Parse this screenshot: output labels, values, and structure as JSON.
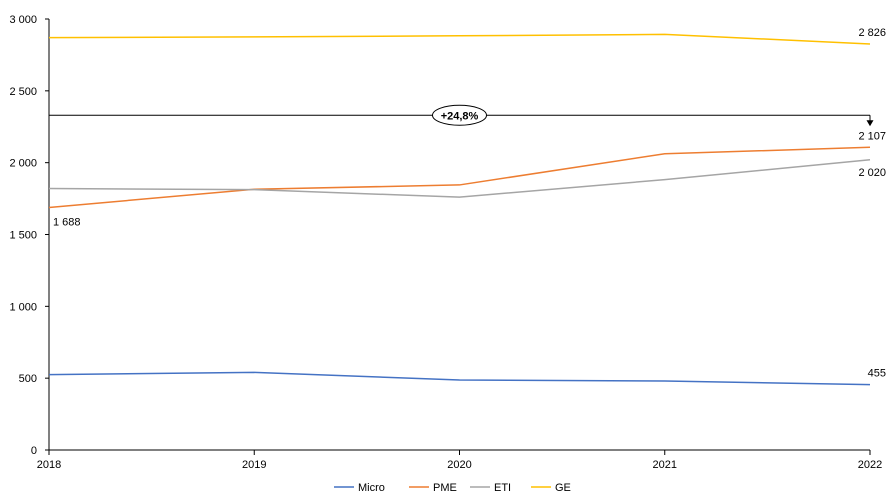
{
  "chart_data": {
    "type": "line",
    "x": [
      "2018",
      "2019",
      "2020",
      "2021",
      "2022"
    ],
    "ylim": [
      0,
      3000
    ],
    "yticks": [
      0,
      500,
      1000,
      1500,
      2000,
      2500,
      3000
    ],
    "ytick_labels": [
      "0",
      "500",
      "1 000",
      "1 500",
      "2 000",
      "2 500",
      "3 000"
    ],
    "series": [
      {
        "name": "Micro",
        "color": "#4472C4",
        "values": [
          525,
          540,
          487,
          480,
          455
        ]
      },
      {
        "name": "PME",
        "color": "#ED7D31",
        "values": [
          1688,
          1815,
          1845,
          2062,
          2107
        ]
      },
      {
        "name": "ETI",
        "color": "#A5A5A5",
        "values": [
          1820,
          1812,
          1760,
          1882,
          2020
        ]
      },
      {
        "name": "GE",
        "color": "#FFC000",
        "values": [
          2870,
          2876,
          2883,
          2893,
          2826
        ]
      }
    ],
    "data_labels": [
      {
        "series": "PME",
        "index": 0,
        "text": "1 688"
      },
      {
        "series": "GE",
        "index": 4,
        "text": "2 826"
      },
      {
        "series": "PME",
        "index": 4,
        "text": "2 107"
      },
      {
        "series": "ETI",
        "index": 4,
        "text": "2 020"
      },
      {
        "series": "Micro",
        "index": 4,
        "text": "455"
      }
    ],
    "annotation": {
      "text": "+24,8%",
      "level": 2330,
      "from_index": 0,
      "to_index": 4
    },
    "legend_position": "bottom",
    "grid": false
  }
}
